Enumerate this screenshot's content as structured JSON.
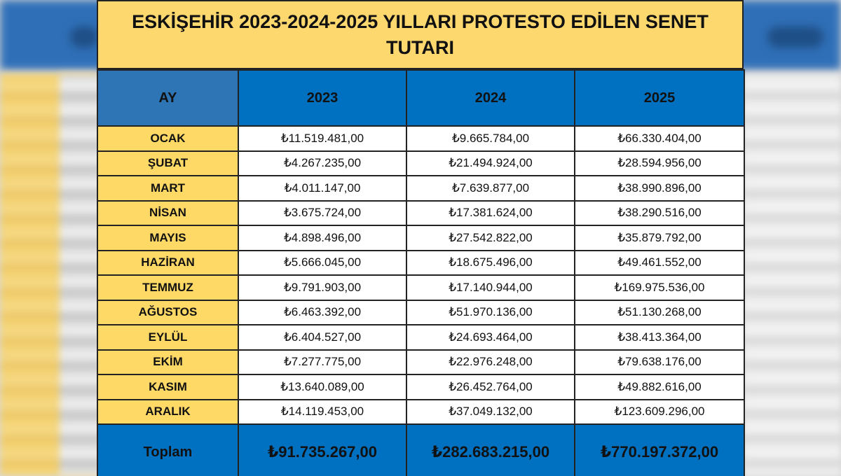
{
  "title": "ESKİŞEHİR 2023-2024-2025 YILLARI PROTESTO EDİLEN SENET TUTARI",
  "headers": [
    "AY",
    "2023",
    "2024",
    "2025"
  ],
  "rows": [
    {
      "month": "OCAK",
      "v2023": "₺11.519.481,00",
      "v2024": "₺9.665.784,00",
      "v2025": "₺66.330.404,00"
    },
    {
      "month": "ŞUBAT",
      "v2023": "₺4.267.235,00",
      "v2024": "₺21.494.924,00",
      "v2025": "₺28.594.956,00"
    },
    {
      "month": "MART",
      "v2023": "₺4.011.147,00",
      "v2024": "₺7.639.877,00",
      "v2025": "₺38.990.896,00"
    },
    {
      "month": "NİSAN",
      "v2023": "₺3.675.724,00",
      "v2024": "₺17.381.624,00",
      "v2025": "₺38.290.516,00"
    },
    {
      "month": "MAYIS",
      "v2023": "₺4.898.496,00",
      "v2024": "₺27.542.822,00",
      "v2025": "₺35.879.792,00"
    },
    {
      "month": "HAZİRAN",
      "v2023": "₺5.666.045,00",
      "v2024": "₺18.675.496,00",
      "v2025": "₺49.461.552,00"
    },
    {
      "month": "TEMMUZ",
      "v2023": "₺9.791.903,00",
      "v2024": "₺17.140.944,00",
      "v2025": "₺169.975.536,00"
    },
    {
      "month": "AĞUSTOS",
      "v2023": "₺6.463.392,00",
      "v2024": "₺51.970.136,00",
      "v2025": "₺51.130.268,00"
    },
    {
      "month": "EYLÜL",
      "v2023": "₺6.404.527,00",
      "v2024": "₺24.693.464,00",
      "v2025": "₺38.413.364,00"
    },
    {
      "month": "EKİM",
      "v2023": "₺7.277.775,00",
      "v2024": "₺22.976.248,00",
      "v2025": "₺79.638.176,00"
    },
    {
      "month": "KASIM",
      "v2023": "₺13.640.089,00",
      "v2024": "₺26.452.764,00",
      "v2025": "₺49.882.616,00"
    },
    {
      "month": "ARALIK",
      "v2023": "₺14.119.453,00",
      "v2024": "₺37.049.132,00",
      "v2025": "₺123.609.296,00"
    }
  ],
  "total": {
    "label": "Toplam",
    "v2023": "₺91.735.267,00",
    "v2024": "₺282.683.215,00",
    "v2025": "₺770.197.372,00"
  },
  "colors": {
    "title_bg": "#fdd86e",
    "header_bg": "#0070c0",
    "month_bg": "#ffd966"
  }
}
